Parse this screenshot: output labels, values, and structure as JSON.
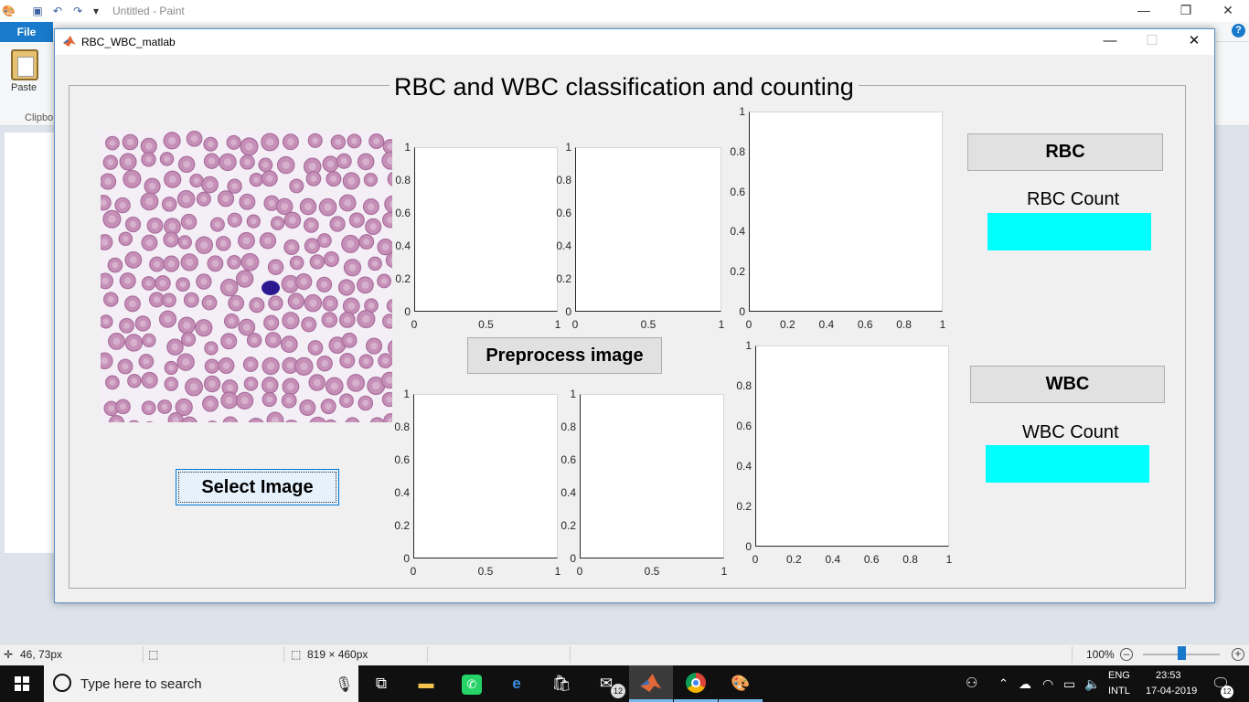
{
  "paint": {
    "title": "Untitled - Paint",
    "file_tab": "File",
    "paste_label": "Paste",
    "clipboard_label": "Clipbo",
    "help": "?",
    "status": {
      "cursor_pos": "46, 73px",
      "canvas_size": "819 × 460px",
      "zoom": "100%"
    }
  },
  "matlab_window": {
    "title": "RBC_WBC_matlab",
    "minimize": "—",
    "maximize": "☐",
    "close": "✕",
    "panel_title": "RBC and WBC classification and counting",
    "buttons": {
      "select_image": "Select Image",
      "preprocess_image": "Preprocess image",
      "rbc": "RBC",
      "wbc": "WBC"
    },
    "labels": {
      "rbc_count": "RBC Count",
      "wbc_count": "WBC Count"
    },
    "rbc_count_value": "",
    "wbc_count_value": "",
    "count_box_color": "#00ffff"
  },
  "chart_data": [
    {
      "type": "scatter",
      "title": "",
      "xlabel": "",
      "ylabel": "",
      "xlim": [
        0,
        1
      ],
      "ylim": [
        0,
        1
      ],
      "xticks": [
        "0",
        "0.5",
        "1"
      ],
      "yticks": [
        "0",
        "0.2",
        "0.4",
        "0.6",
        "0.8",
        "1"
      ],
      "series": []
    },
    {
      "type": "scatter",
      "title": "",
      "xlabel": "",
      "ylabel": "",
      "xlim": [
        0,
        1
      ],
      "ylim": [
        0,
        1
      ],
      "xticks": [
        "0",
        "0.5",
        "1"
      ],
      "yticks": [
        "0",
        "0.2",
        "0.4",
        "0.6",
        "0.8",
        "1"
      ],
      "series": []
    },
    {
      "type": "scatter",
      "title": "",
      "xlabel": "",
      "ylabel": "",
      "xlim": [
        0,
        1
      ],
      "ylim": [
        0,
        1
      ],
      "xticks": [
        "0",
        "0.2",
        "0.4",
        "0.6",
        "0.8",
        "1"
      ],
      "yticks": [
        "0",
        "0.2",
        "0.4",
        "0.6",
        "0.8",
        "1"
      ],
      "series": []
    },
    {
      "type": "scatter",
      "title": "",
      "xlabel": "",
      "ylabel": "",
      "xlim": [
        0,
        1
      ],
      "ylim": [
        0,
        1
      ],
      "xticks": [
        "0",
        "0.5",
        "1"
      ],
      "yticks": [
        "0",
        "0.2",
        "0.4",
        "0.6",
        "0.8",
        "1"
      ],
      "series": []
    },
    {
      "type": "scatter",
      "title": "",
      "xlabel": "",
      "ylabel": "",
      "xlim": [
        0,
        1
      ],
      "ylim": [
        0,
        1
      ],
      "xticks": [
        "0",
        "0.5",
        "1"
      ],
      "yticks": [
        "0",
        "0.2",
        "0.4",
        "0.6",
        "0.8",
        "1"
      ],
      "series": []
    },
    {
      "type": "scatter",
      "title": "",
      "xlabel": "",
      "ylabel": "",
      "xlim": [
        0,
        1
      ],
      "ylim": [
        0,
        1
      ],
      "xticks": [
        "0",
        "0.2",
        "0.4",
        "0.6",
        "0.8",
        "1"
      ],
      "yticks": [
        "0",
        "0.2",
        "0.4",
        "0.6",
        "0.8",
        "1"
      ],
      "series": []
    }
  ],
  "taskbar": {
    "search_placeholder": "Type here to search",
    "mail_badge": "12",
    "language": "ENG",
    "layout": "INTL",
    "time": "23:53",
    "date": "17-04-2019",
    "notification_badge": "12"
  },
  "icons": {
    "paint_app": "paint-icon",
    "save": "save-icon",
    "undo": "undo-icon",
    "redo": "redo-icon",
    "matlab": "matlab-icon",
    "windows": "windows-start-icon",
    "search": "search-icon",
    "mic": "microphone-icon"
  }
}
